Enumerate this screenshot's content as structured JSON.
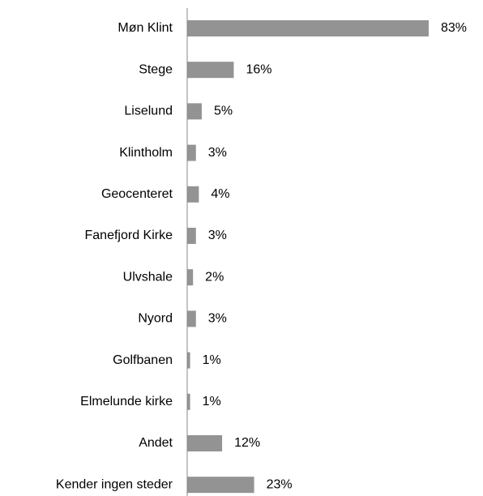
{
  "chart_data": {
    "type": "bar",
    "orientation": "horizontal",
    "categories": [
      "Møn Klint",
      "Stege",
      "Liselund",
      "Klintholm",
      "Geocenteret",
      "Fanefjord Kirke",
      "Ulvshale",
      "Nyord",
      "Golfbanen",
      "Elmelunde kirke",
      "Andet",
      "Kender ingen steder"
    ],
    "values": [
      83,
      16,
      5,
      3,
      4,
      3,
      2,
      3,
      1,
      1,
      12,
      23
    ],
    "value_labels": [
      "83%",
      "16%",
      "5%",
      "3%",
      "4%",
      "3%",
      "2%",
      "3%",
      "1%",
      "1%",
      "12%",
      "23%"
    ],
    "color": "#939393"
  }
}
